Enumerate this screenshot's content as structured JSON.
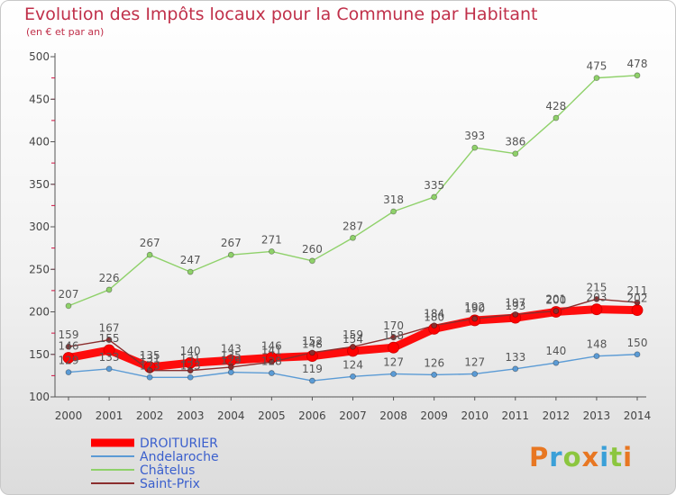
{
  "header": {
    "title": "Evolution des Impôts locaux pour la Commune par Habitant",
    "subtitle": "(en € et par an)"
  },
  "logo": {
    "text": "Proxiti",
    "colors": [
      "#e87722",
      "#3aa0d8",
      "#8cc63f",
      "#e87722",
      "#3aa0d8",
      "#8cc63f",
      "#e87722"
    ]
  },
  "chart_data": {
    "type": "line",
    "x": [
      "2000",
      "2001",
      "2002",
      "2003",
      "2004",
      "2005",
      "2006",
      "2007",
      "2008",
      "2009",
      "2010",
      "2011",
      "2012",
      "2013",
      "2014"
    ],
    "ylim": [
      100,
      500
    ],
    "yticks": [
      100,
      150,
      200,
      250,
      300,
      350,
      400,
      450,
      500
    ],
    "grid": false,
    "legend_position": "bottom-left",
    "series": [
      {
        "name": "DROITURIER",
        "color": "#ff0000",
        "values": [
          146,
          155,
          135,
          140,
          143,
          146,
          148,
          154,
          158,
          180,
          190,
          193,
          200,
          203,
          202
        ],
        "labels": [
          "146",
          "155",
          "135",
          "140",
          "143",
          "146",
          "148",
          "154",
          "158",
          "180",
          "190",
          "193",
          "200",
          "203",
          "202"
        ]
      },
      {
        "name": "Andelaroche",
        "color": "#5b9bd5",
        "values": [
          129,
          133,
          123,
          123,
          129,
          128,
          119,
          124,
          127,
          126,
          127,
          133,
          140,
          148,
          150
        ],
        "labels": [
          "129",
          "133",
          "123",
          "123",
          "129",
          "128",
          "119",
          "124",
          "127",
          "126",
          "127",
          "133",
          "140",
          "148",
          "150"
        ]
      },
      {
        "name": "Châtelus",
        "color": "#8fd16a",
        "values": [
          207,
          226,
          267,
          247,
          267,
          271,
          260,
          287,
          318,
          335,
          393,
          386,
          428,
          475,
          478
        ],
        "labels": [
          "207",
          "226",
          "267",
          "247",
          "267",
          "271",
          "260",
          "287",
          "318",
          "335",
          "393",
          "386",
          "428",
          "475",
          "478"
        ]
      },
      {
        "name": "Saint-Prix",
        "color": "#8b2e2e",
        "values": [
          159,
          167,
          131,
          131,
          135,
          141,
          152,
          159,
          170,
          184,
          192,
          197,
          201,
          215,
          211
        ],
        "labels": [
          "159",
          "167",
          "131",
          "131",
          "135",
          "141",
          "152",
          "159",
          "170",
          "184",
          "192",
          "197",
          "201",
          "215",
          "211"
        ]
      }
    ]
  }
}
